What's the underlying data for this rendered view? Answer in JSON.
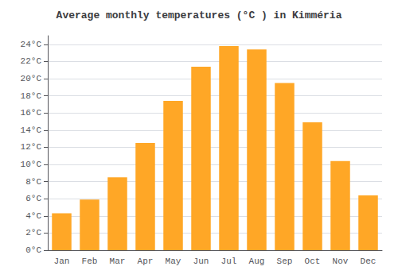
{
  "chart_data": {
    "type": "bar",
    "title": "Average monthly temperatures (°C ) in Kimméria",
    "categories": [
      "Jan",
      "Feb",
      "Mar",
      "Apr",
      "May",
      "Jun",
      "Jul",
      "Aug",
      "Sep",
      "Oct",
      "Nov",
      "Dec"
    ],
    "values": [
      4.3,
      5.9,
      8.5,
      12.5,
      17.4,
      21.4,
      23.8,
      23.4,
      19.5,
      14.9,
      10.4,
      6.4
    ],
    "color": "#FFA726",
    "ylim": [
      0,
      25
    ],
    "yticks": [
      {
        "value": 0,
        "label": "0°C"
      },
      {
        "value": 2,
        "label": "2°C"
      },
      {
        "value": 4,
        "label": "4°C"
      },
      {
        "value": 6,
        "label": "6°C"
      },
      {
        "value": 8,
        "label": "8°C"
      },
      {
        "value": 10,
        "label": "10°C"
      },
      {
        "value": 12,
        "label": "12°C"
      },
      {
        "value": 14,
        "label": "14°C"
      },
      {
        "value": 16,
        "label": "16°C"
      },
      {
        "value": 18,
        "label": "18°C"
      },
      {
        "value": 20,
        "label": "20°C"
      },
      {
        "value": 22,
        "label": "22°C"
      },
      {
        "value": 24,
        "label": "24°C"
      }
    ],
    "grid": true
  }
}
